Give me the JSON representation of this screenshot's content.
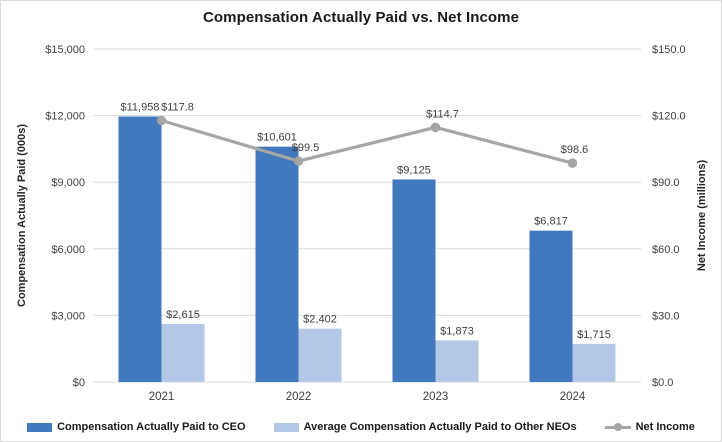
{
  "chart": {
    "title": "Compensation Actually Paid vs. Net Income"
  },
  "chart_data": {
    "type": "bar",
    "subtype": "clustered-bar-with-line-combo",
    "title": "Compensation Actually Paid vs. Net Income",
    "categories": [
      "2021",
      "2022",
      "2023",
      "2024"
    ],
    "series": [
      {
        "name": "Compensation Actually Paid to CEO",
        "type": "bar",
        "axis": "left",
        "color": "#4178be",
        "values": [
          11958,
          10601,
          9125,
          6817
        ],
        "labels": [
          "$11,958",
          "$10,601",
          "$9,125",
          "$6,817"
        ]
      },
      {
        "name": "Average Compensation Actually Paid to Other NEOs",
        "type": "bar",
        "axis": "left",
        "color": "#b4c7e7",
        "values": [
          2615,
          2402,
          1873,
          1715
        ],
        "labels": [
          "$2,615",
          "$2,402",
          "$1,873",
          "$1,715"
        ]
      },
      {
        "name": "Net Income",
        "type": "line",
        "axis": "right",
        "color": "#a6a6a6",
        "values": [
          117.8,
          99.5,
          114.7,
          98.6
        ],
        "labels": [
          "$117.8",
          "$99.5",
          "$114.7",
          "$98.6"
        ],
        "label_offsets_x": [
          16,
          7,
          7,
          2
        ],
        "label_offsets_y": [
          -10,
          -10,
          -10,
          -10
        ]
      }
    ],
    "left_axis": {
      "title": "Compensation Actually Paid (000s)",
      "min": 0,
      "max": 15000,
      "step": 3000,
      "tick_labels": [
        "$0",
        "$3,000",
        "$6,000",
        "$9,000",
        "$12,000",
        "$15,000"
      ]
    },
    "right_axis": {
      "title": "Net Income (millions)",
      "min": 0,
      "max": 150,
      "step": 30,
      "tick_labels": [
        "$0.0",
        "$30.0",
        "$60.0",
        "$90.0",
        "$120.0",
        "$150.0"
      ]
    },
    "grid": true,
    "gridline_color": "#dcdcdc",
    "legend_position": "bottom"
  }
}
